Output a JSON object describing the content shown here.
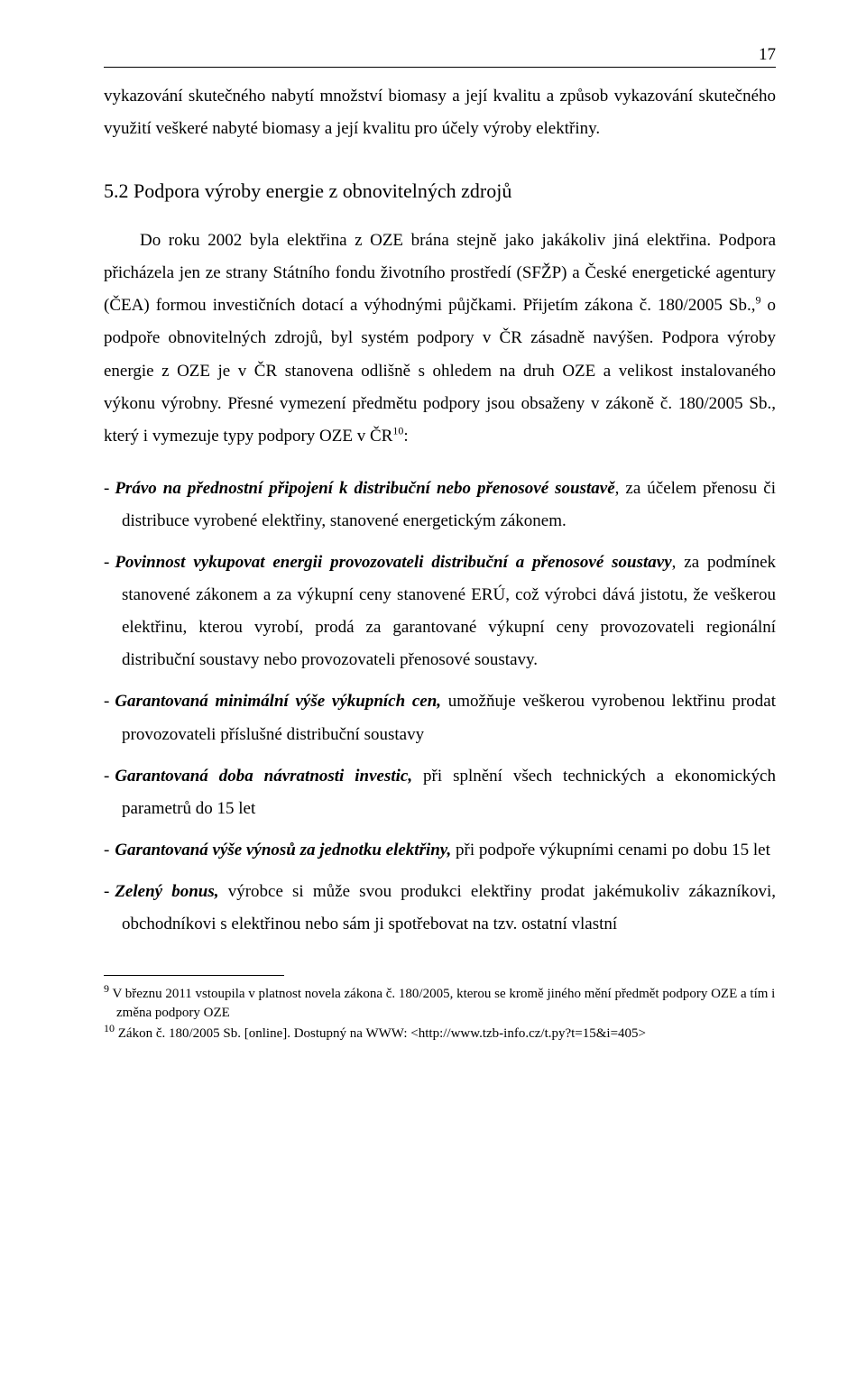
{
  "page_number": "17",
  "lead_paragraph": "vykazování skutečného nabytí množství biomasy a její kvalitu a způsob vykazování skutečného využití veškeré nabyté biomasy a její kvalitu pro účely výroby elektřiny.",
  "heading": "5.2  Podpora výroby energie z obnovitelných zdrojů",
  "body_paragraph_parts": {
    "p1": "Do roku 2002 byla elektřina z OZE brána stejně jako jakákoliv jiná elektřina. Podpora přicházela jen ze strany Státního fondu životního prostředí (SFŽP) a České energetické agentury (ČEA) formou investičních dotací a výhodnými půjčkami. Přijetím zákona č. 180/2005 Sb.,",
    "sup1": "9",
    "p2": " o podpoře obnovitelných zdrojů, byl systém podpory v ČR zásadně navýšen. Podpora výroby energie z OZE je v ČR stanovena odlišně s ohledem na druh OZE a velikost instalovaného výkonu výrobny. Přesné vymezení předmětu podpory jsou obsaženy v zákoně č. 180/2005 Sb., který i vymezuje typy podpory OZE v ČR",
    "sup2": "10",
    "p3": ":"
  },
  "bullets": [
    {
      "bold": "Právo na přednostní připojení k distribuční nebo přenosové soustavě",
      "rest": ", za účelem přenosu či distribuce vyrobené elektřiny, stanovené energetickým zákonem."
    },
    {
      "bold": "Povinnost vykupovat energii provozovateli distribuční a přenosové soustavy",
      "rest": ", za podmínek stanovené zákonem a za výkupní ceny stanovené ERÚ, což výrobci dává jistotu, že veškerou elektřinu, kterou vyrobí, prodá za garantované výkupní ceny provozovateli regionální distribuční soustavy nebo provozovateli přenosové soustavy."
    },
    {
      "bold": "Garantovaná minimální výše výkupních cen,",
      "rest": " umožňuje veškerou vyrobenou lektřinu prodat provozovateli příslušné distribuční soustavy"
    },
    {
      "bold": "Garantovaná doba návratnosti investic,",
      "rest": " při splnění všech technických a ekonomických parametrů do 15 let"
    },
    {
      "bold": "Garantovaná výše výnosů za jednotku elektřiny,",
      "rest": " při podpoře výkupními cenami po dobu 15 let"
    },
    {
      "bold": "Zelený bonus,",
      "rest": " výrobce si může svou produkci elektřiny prodat jakémukoliv zákazníkovi, obchodníkovi s elektřinou nebo sám ji spotřebovat na tzv. ostatní vlastní"
    }
  ],
  "footnotes": {
    "f9_mark": "9",
    "f9_text": " V březnu 2011 vstoupila v platnost novela zákona č. 180/2005, kterou se kromě jiného mění předmět podpory OZE a tím i změna podpory OZE",
    "f10_mark": "10",
    "f10_text": " Zákon č. 180/2005 Sb. [online]. Dostupný na WWW: <http://www.tzb-info.cz/t.py?t=15&i=405>"
  }
}
